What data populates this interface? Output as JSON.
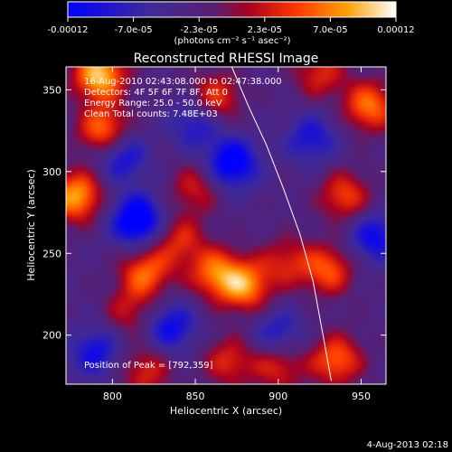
{
  "chart_data": {
    "type": "heatmap",
    "title": "Reconstructed RHESSI Image",
    "xlabel": "Heliocentric X (arcsec)",
    "ylabel": "Heliocentric Y (arcsec)",
    "xlim": [
      772,
      965
    ],
    "ylim": [
      170,
      364
    ],
    "x_ticks": [
      800,
      850,
      900,
      950
    ],
    "y_ticks": [
      200,
      250,
      300,
      350
    ],
    "colorbar": {
      "range": [
        -0.00012,
        0.00012
      ],
      "tick_labels": [
        "-0.00012",
        "-7.0e-05",
        "-2.3e-05",
        "2.3e-05",
        "7.0e-05",
        "0.00012"
      ],
      "unit_label": "(photons cm⁻² s⁻¹ asec⁻²)"
    },
    "annotations": [
      "16-Aug-2010 02:43:08.000 to 02:47:38.000",
      "Detectors: 4F 5F 6F 7F 8F, Att 0",
      "Energy Range: 25.0 - 50.0 keV",
      "Clean    Total counts: 7.48E+03"
    ],
    "peak_label": "Position of Peak = [792,359]",
    "limb_curve": {
      "x": [
        872,
        882,
        893,
        903,
        913,
        921,
        927,
        932
      ],
      "y": [
        364,
        340,
        316,
        290,
        262,
        233,
        200,
        172
      ]
    },
    "bright_sources": [
      {
        "x": 792,
        "y": 359,
        "v": 1.0
      },
      {
        "x": 795,
        "y": 325,
        "v": 0.8
      },
      {
        "x": 778,
        "y": 285,
        "v": 0.9
      },
      {
        "x": 862,
        "y": 345,
        "v": 0.6
      },
      {
        "x": 820,
        "y": 238,
        "v": 0.7
      },
      {
        "x": 840,
        "y": 258,
        "v": 0.5
      },
      {
        "x": 862,
        "y": 238,
        "v": 0.7
      },
      {
        "x": 880,
        "y": 230,
        "v": 0.8
      },
      {
        "x": 955,
        "y": 340,
        "v": 0.75
      },
      {
        "x": 940,
        "y": 285,
        "v": 0.6
      },
      {
        "x": 930,
        "y": 240,
        "v": 0.65
      },
      {
        "x": 905,
        "y": 245,
        "v": 0.45
      },
      {
        "x": 935,
        "y": 185,
        "v": 0.7
      },
      {
        "x": 900,
        "y": 182,
        "v": 0.55
      },
      {
        "x": 820,
        "y": 178,
        "v": 0.5
      },
      {
        "x": 870,
        "y": 184,
        "v": 0.5
      },
      {
        "x": 850,
        "y": 290,
        "v": 0.45
      },
      {
        "x": 925,
        "y": 360,
        "v": 0.5
      },
      {
        "x": 810,
        "y": 214,
        "v": 0.4
      }
    ],
    "dark_sources": [
      {
        "x": 815,
        "y": 270,
        "v": -0.9
      },
      {
        "x": 805,
        "y": 310,
        "v": -0.6
      },
      {
        "x": 872,
        "y": 305,
        "v": -0.8
      },
      {
        "x": 900,
        "y": 200,
        "v": -0.5
      },
      {
        "x": 835,
        "y": 205,
        "v": -0.6
      },
      {
        "x": 920,
        "y": 320,
        "v": -0.5
      },
      {
        "x": 958,
        "y": 260,
        "v": -0.6
      },
      {
        "x": 850,
        "y": 330,
        "v": -0.5
      },
      {
        "x": 790,
        "y": 190,
        "v": -0.55
      }
    ]
  },
  "footer_date": "4-Aug-2013 02:18"
}
